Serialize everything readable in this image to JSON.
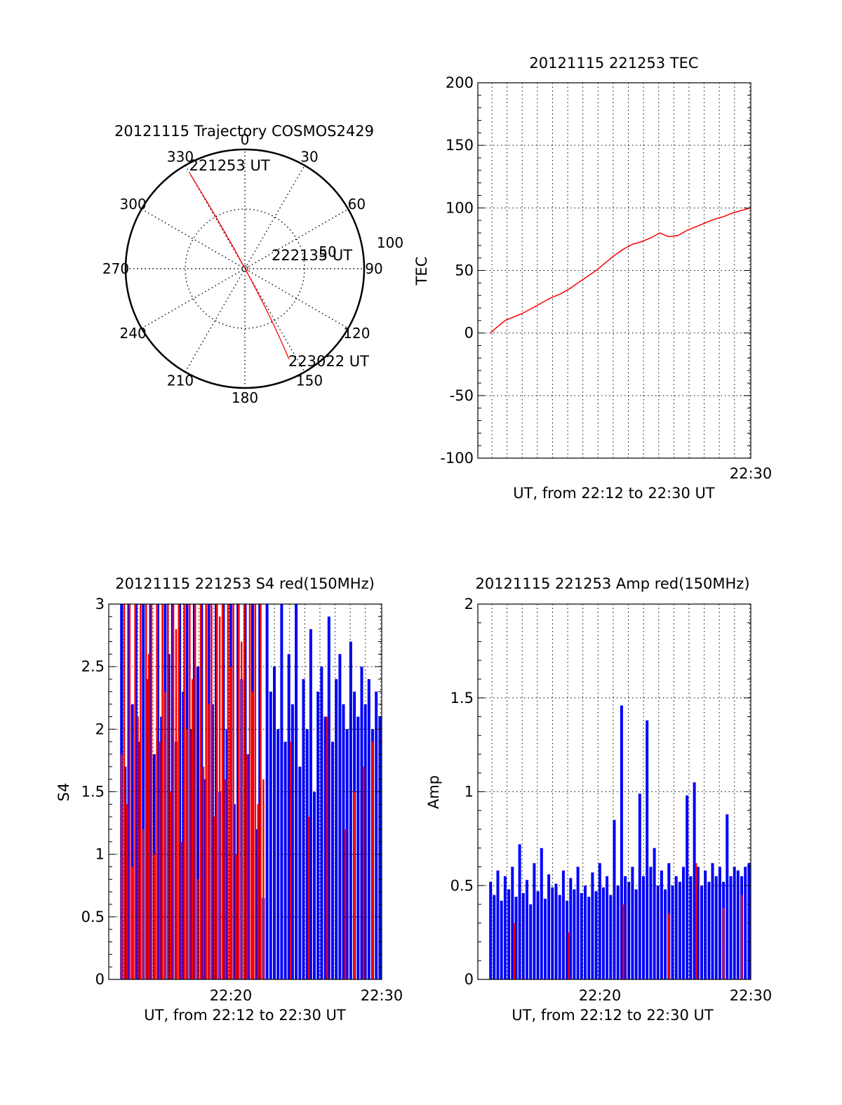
{
  "colors": {
    "accent": "#ff0000",
    "series2": "#0000ff",
    "axis": "#000000",
    "grid": "#000000"
  },
  "chart_data": [
    {
      "type": "polar-trajectory",
      "title": "20121115 Trajectory COSMOS2429",
      "azimuth_labels": [
        "0",
        "30",
        "60",
        "90",
        "120",
        "150",
        "180",
        "210",
        "240",
        "270",
        "300",
        "330"
      ],
      "elevation_ring_labels": [
        "50",
        "100"
      ],
      "grid": true,
      "track": {
        "points": [
          {
            "azimuth": 330,
            "elevation": 7
          },
          {
            "azimuth": 140,
            "elevation": 75
          },
          {
            "azimuth": 154,
            "elevation": 14
          }
        ],
        "start_label": "221253 UT",
        "mid_label": "222135 UT",
        "end_label": "223022 UT"
      },
      "colors": {
        "track": "#ff0000"
      }
    },
    {
      "type": "line",
      "title": "20121115 221253 TEC",
      "xlabel": "UT, from 22:12 to 22:30 UT",
      "ylabel": "TEC",
      "xlim": [
        22.2,
        22.5
      ],
      "ylim": [
        -100,
        200
      ],
      "yticks": [
        "200",
        "150",
        "100",
        "50",
        "0",
        "-50",
        "-100"
      ],
      "xtick_label": "22:30",
      "grid": true,
      "series": [
        {
          "x": [
            22.214,
            22.22,
            22.23,
            22.24,
            22.25,
            22.26,
            22.27,
            22.28,
            22.29,
            22.3,
            22.31,
            22.32,
            22.33,
            22.34,
            22.35,
            22.36,
            22.37,
            22.38,
            22.39,
            22.4,
            22.41,
            22.42,
            22.43,
            22.44,
            22.45,
            22.46,
            22.47,
            22.48,
            22.49,
            22.5
          ],
          "y": [
            0,
            4,
            10,
            13,
            16,
            20,
            24,
            28,
            31,
            35,
            40,
            45,
            50,
            56,
            62,
            67,
            71,
            73,
            76,
            80,
            77,
            78,
            82,
            85,
            88,
            91,
            93,
            96,
            98,
            100
          ],
          "color": "#ff0000"
        }
      ]
    },
    {
      "type": "bar",
      "title": "20121115 221253 S4 red(150MHz)",
      "xlabel": "UT, from 22:12 to 22:30 UT",
      "ylabel": "S4",
      "xlim": [
        22.2,
        22.5
      ],
      "ylim": [
        0,
        3
      ],
      "yticks": [
        "3",
        "2.5",
        "2",
        "1.5",
        "1",
        "0.5",
        "0"
      ],
      "xtick_labels": [
        "22:20",
        "22:30"
      ],
      "grid": true,
      "series": [
        {
          "color": "#0000ff",
          "x": [
            22.214,
            22.218,
            22.222,
            22.226,
            22.23,
            22.234,
            22.238,
            22.242,
            22.246,
            22.25,
            22.254,
            22.258,
            22.262,
            22.266,
            22.27,
            22.274,
            22.278,
            22.282,
            22.286,
            22.29,
            22.294,
            22.298,
            22.302,
            22.306,
            22.31,
            22.314,
            22.318,
            22.322,
            22.326,
            22.33,
            22.334,
            22.338,
            22.342,
            22.346,
            22.35,
            22.354,
            22.358,
            22.362,
            22.366,
            22.37,
            22.374,
            22.378,
            22.382,
            22.386,
            22.39,
            22.394,
            22.398,
            22.402,
            22.406,
            22.41,
            22.414,
            22.418,
            22.422,
            22.426,
            22.43,
            22.434,
            22.438,
            22.442,
            22.446,
            22.45,
            22.454,
            22.458,
            22.462,
            22.466,
            22.47,
            22.474,
            22.478,
            22.482,
            22.486,
            22.49,
            22.494,
            22.498
          ],
          "values": [
            3,
            1.7,
            3,
            2.2,
            3,
            1.9,
            3,
            2.4,
            3,
            1.8,
            3,
            2.1,
            3,
            2.6,
            3,
            1.9,
            3,
            2.3,
            3,
            2.0,
            3,
            2.5,
            3,
            1.6,
            3,
            2.2,
            3,
            1.5,
            3,
            2.0,
            3,
            1.4,
            3,
            2.4,
            3,
            1.8,
            3,
            1.2,
            3,
            0.65,
            3,
            2.3,
            2.5,
            2.0,
            3,
            1.9,
            2.6,
            2.2,
            3,
            1.7,
            2.4,
            2.0,
            2.8,
            1.5,
            2.3,
            2.5,
            2.1,
            2.9,
            1.9,
            2.4,
            2.6,
            2.2,
            2.0,
            2.7,
            2.3,
            2.1,
            2.5,
            2.2,
            2.4,
            2.0,
            2.3,
            2.1
          ]
        },
        {
          "color": "#ff0000",
          "x": [
            22.214,
            22.217,
            22.22,
            22.223,
            22.226,
            22.229,
            22.232,
            22.235,
            22.238,
            22.241,
            22.244,
            22.247,
            22.25,
            22.253,
            22.256,
            22.259,
            22.262,
            22.265,
            22.268,
            22.271,
            22.274,
            22.277,
            22.28,
            22.283,
            22.286,
            22.289,
            22.292,
            22.295,
            22.298,
            22.301,
            22.304,
            22.307,
            22.31,
            22.313,
            22.316,
            22.319,
            22.322,
            22.325,
            22.328,
            22.331,
            22.334,
            22.337,
            22.34,
            22.343,
            22.346,
            22.349,
            22.352,
            22.355,
            22.358,
            22.361,
            22.364,
            22.367,
            22.37,
            22.4,
            22.42,
            22.44,
            22.46,
            22.47,
            22.48,
            22.49
          ],
          "values": [
            1.8,
            3,
            1.4,
            3,
            0.9,
            3,
            2.1,
            3,
            1.2,
            3,
            2.6,
            3,
            1.0,
            3,
            1.9,
            3,
            2.3,
            3,
            1.5,
            3,
            2.8,
            3,
            1.1,
            3,
            2.0,
            3,
            2.4,
            3,
            0.8,
            3,
            1.7,
            3,
            2.2,
            3,
            1.3,
            3,
            2.9,
            3,
            1.6,
            3,
            2.5,
            3,
            1.0,
            3,
            2.7,
            3,
            1.8,
            3,
            2.3,
            3,
            1.4,
            3,
            1.6,
            1.9,
            1.3,
            2.1,
            1.2,
            1.5,
            1.7,
            1.9
          ]
        }
      ]
    },
    {
      "type": "bar",
      "title": "20121115 221253 Amp red(150MHz)",
      "xlabel": "UT, from 22:12 to 22:30 UT",
      "ylabel": "Amp",
      "xlim": [
        22.2,
        22.5
      ],
      "ylim": [
        0,
        2
      ],
      "yticks": [
        "2",
        "1.5",
        "1",
        "0.5",
        "0"
      ],
      "xtick_labels": [
        "22:20",
        "22:30"
      ],
      "grid": true,
      "series": [
        {
          "color": "#0000ff",
          "x": [
            22.214,
            22.218,
            22.222,
            22.226,
            22.23,
            22.234,
            22.238,
            22.242,
            22.246,
            22.25,
            22.254,
            22.258,
            22.262,
            22.266,
            22.27,
            22.274,
            22.278,
            22.282,
            22.286,
            22.29,
            22.294,
            22.298,
            22.302,
            22.306,
            22.31,
            22.314,
            22.318,
            22.322,
            22.326,
            22.33,
            22.334,
            22.338,
            22.342,
            22.346,
            22.35,
            22.354,
            22.358,
            22.362,
            22.366,
            22.37,
            22.374,
            22.378,
            22.382,
            22.386,
            22.39,
            22.394,
            22.398,
            22.402,
            22.406,
            22.41,
            22.414,
            22.418,
            22.422,
            22.426,
            22.43,
            22.434,
            22.438,
            22.442,
            22.446,
            22.45,
            22.454,
            22.458,
            22.462,
            22.466,
            22.47,
            22.474,
            22.478,
            22.482,
            22.486,
            22.49,
            22.494,
            22.498
          ],
          "values": [
            0.52,
            0.45,
            0.58,
            0.42,
            0.55,
            0.48,
            0.6,
            0.44,
            0.72,
            0.46,
            0.53,
            0.4,
            0.62,
            0.47,
            0.7,
            0.43,
            0.56,
            0.49,
            0.51,
            0.45,
            0.58,
            0.42,
            0.54,
            0.48,
            0.6,
            0.46,
            0.5,
            0.44,
            0.57,
            0.47,
            0.62,
            0.49,
            0.55,
            0.45,
            0.85,
            0.5,
            1.46,
            0.55,
            0.52,
            0.6,
            0.48,
            0.99,
            0.55,
            1.38,
            0.6,
            0.7,
            0.5,
            0.58,
            0.48,
            0.62,
            0.5,
            0.55,
            0.52,
            0.6,
            0.98,
            0.55,
            1.05,
            0.6,
            0.5,
            0.58,
            0.52,
            0.62,
            0.55,
            0.6,
            0.52,
            0.88,
            0.55,
            0.6,
            0.58,
            0.55,
            0.6,
            0.62
          ]
        },
        {
          "color": "#ff0000",
          "x": [
            22.24,
            22.3,
            22.36,
            22.41,
            22.44,
            22.47,
            22.49
          ],
          "values": [
            0.3,
            0.25,
            0.4,
            0.35,
            0.62,
            0.38,
            0.45
          ]
        }
      ]
    }
  ]
}
